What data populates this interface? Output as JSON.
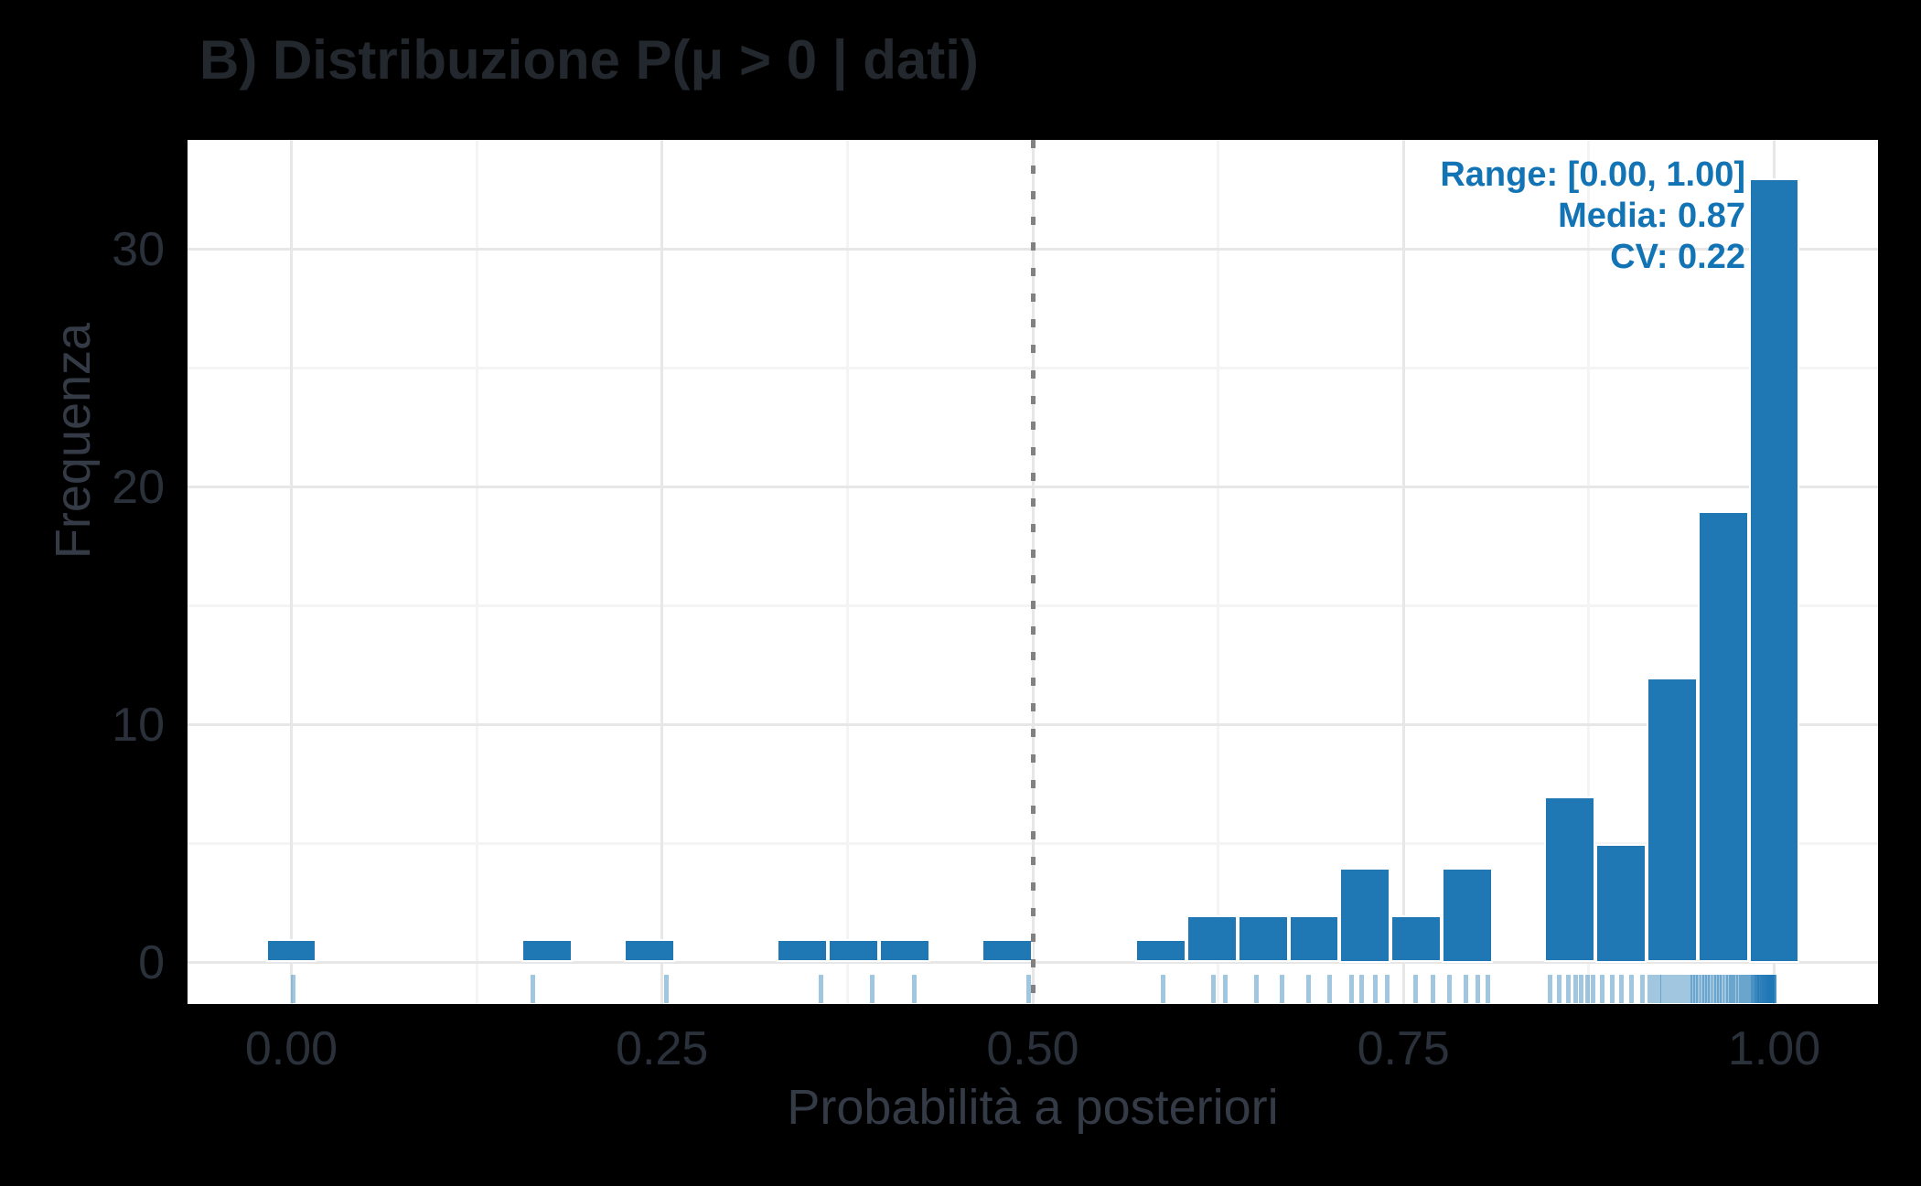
{
  "title": "B) Distribuzione P(μ > 0 | dati)",
  "axes": {
    "x_title": "Probabilità a posteriori",
    "y_title": "Frequenza"
  },
  "annotation": {
    "line1": "Range: [0.00, 1.00]",
    "line2": "Media: 0.87",
    "line3": "CV: 0.22",
    "color": "#1273B5"
  },
  "colors": {
    "background": "#000000",
    "panel": "#FFFFFF",
    "bar_fill": "#1F78B4",
    "bar_stroke": "#FFFFFF",
    "grid_major": "#E7E7E7",
    "grid_minor": "#F4F4F4",
    "reference_line": "#818181",
    "rug": "rgba(31,120,180,0.42)",
    "title_text": "#23272E",
    "axis_text": "#2B313B"
  },
  "chart_data": {
    "type": "bar",
    "variant": "histogram",
    "title": "B) Distribuzione P(μ > 0 | dati)",
    "xlabel": "Probabilità a posteriori",
    "ylabel": "Frequenza",
    "n_observations": 100,
    "bins": 30,
    "binwidth": 0.03448,
    "xlim": [
      -0.07,
      1.07
    ],
    "ylim": [
      -1.75,
      34.6
    ],
    "grid": "on",
    "x_ticks": {
      "values": [
        0,
        0.25,
        0.5,
        0.75,
        1.0
      ],
      "labels": [
        "0.00",
        "0.25",
        "0.50",
        "0.75",
        "1.00"
      ]
    },
    "y_ticks": {
      "values": [
        0,
        10,
        20,
        30
      ],
      "labels": [
        "0",
        "10",
        "20",
        "30"
      ]
    },
    "x_minor_ticks": [
      0.125,
      0.375,
      0.625,
      0.875
    ],
    "y_minor_ticks": [
      5,
      15,
      25
    ],
    "bin_centers": [
      0.0,
      0.0345,
      0.069,
      0.1034,
      0.1379,
      0.1724,
      0.2069,
      0.2414,
      0.2759,
      0.3103,
      0.3448,
      0.3793,
      0.4138,
      0.4483,
      0.4828,
      0.5172,
      0.5517,
      0.5862,
      0.6207,
      0.6552,
      0.6897,
      0.7241,
      0.7586,
      0.7931,
      0.8276,
      0.8621,
      0.8966,
      0.931,
      0.9655,
      1.0
    ],
    "counts": [
      1,
      0,
      0,
      0,
      0,
      1,
      0,
      1,
      0,
      0,
      1,
      1,
      1,
      0,
      1,
      0,
      0,
      1,
      2,
      2,
      2,
      4,
      2,
      4,
      0,
      7,
      5,
      12,
      19,
      33
    ],
    "vline": {
      "x": 0.5,
      "linetype": "dotted",
      "color": "#818181"
    },
    "annotation_lines": [
      "Range: [0.00, 1.00]",
      "Media: 0.87",
      "CV: 0.22"
    ],
    "stats": {
      "range": [
        0.0,
        1.0
      ],
      "mean": 0.87,
      "cv": 0.22
    },
    "rug": [
      0.001,
      0.163,
      0.253,
      0.357,
      0.392,
      0.42,
      0.497,
      0.588,
      0.622,
      0.63,
      0.651,
      0.668,
      0.686,
      0.7,
      0.715,
      0.722,
      0.731,
      0.739,
      0.758,
      0.77,
      0.781,
      0.792,
      0.8,
      0.807,
      0.849,
      0.855,
      0.861,
      0.866,
      0.87,
      0.874,
      0.878,
      0.884,
      0.891,
      0.897,
      0.904,
      0.911,
      0.916,
      0.919,
      0.922,
      0.925,
      0.928,
      0.931,
      0.934,
      0.937,
      0.94,
      0.943,
      0.945,
      0.947,
      0.949,
      0.951,
      0.953,
      0.955,
      0.957,
      0.959,
      0.961,
      0.963,
      0.965,
      0.967,
      0.969,
      0.971,
      0.972,
      0.974,
      0.976,
      0.978,
      0.979,
      0.981,
      0.982,
      0.984,
      0.985,
      0.986,
      0.987,
      0.988,
      0.988,
      0.989,
      0.99,
      0.99,
      0.991,
      0.992,
      0.992,
      0.993,
      0.993,
      0.994,
      0.994,
      0.995,
      0.995,
      0.996,
      0.996,
      0.996,
      0.997,
      0.997,
      0.997,
      0.998,
      0.998,
      0.998,
      0.999,
      0.999,
      0.999,
      1.0,
      1.0,
      1.0
    ],
    "bar_color": "#1F78B4",
    "bar_stroke": "#FFFFFF",
    "rug_color": "rgba(31,120,180,0.42)"
  }
}
